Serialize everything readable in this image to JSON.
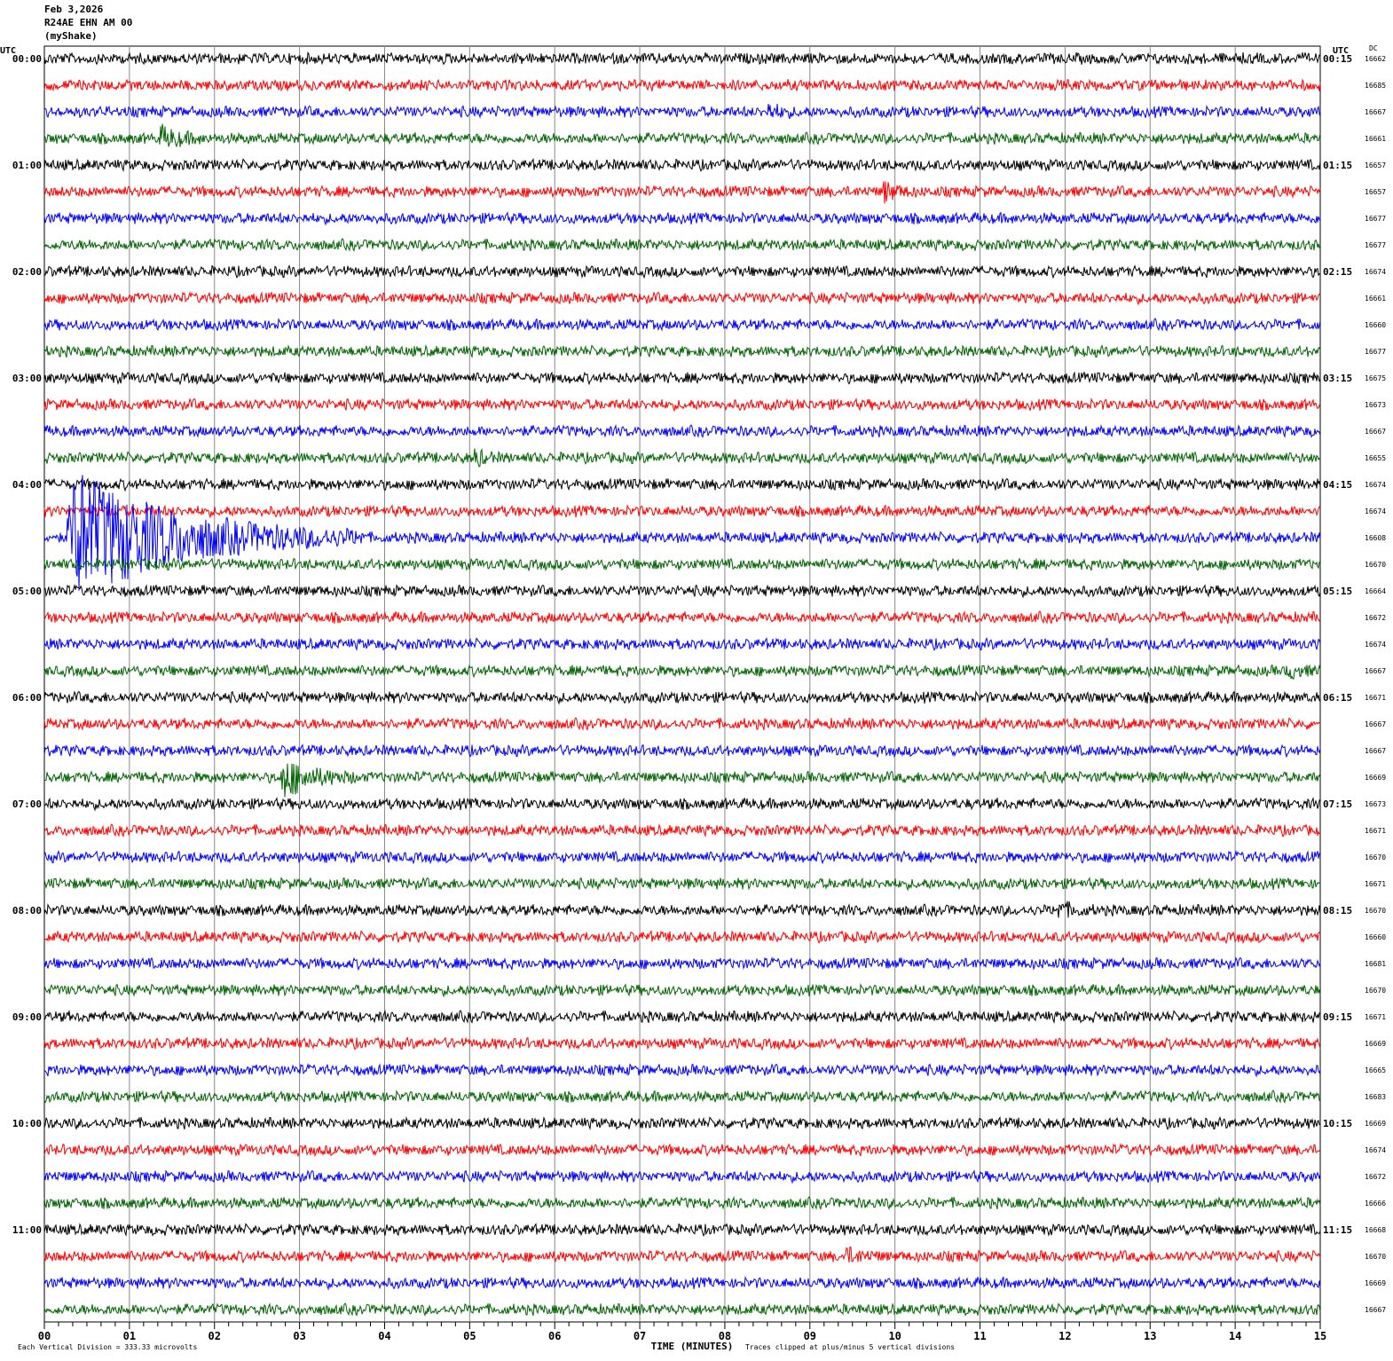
{
  "header": {
    "date": "Feb 3,2026",
    "station": "R24AE EHN AM 00",
    "network": "(myShake)"
  },
  "chart_data": {
    "type": "line",
    "title": "",
    "left_axis_label": "UTC",
    "right_axis_label": "UTC",
    "dc_label": "DC",
    "xlabel": "TIME (MINUTES)",
    "xlim": [
      0,
      15
    ],
    "x_ticks": [
      "00",
      "01",
      "02",
      "03",
      "04",
      "05",
      "06",
      "07",
      "08",
      "09",
      "10",
      "11",
      "12",
      "13",
      "14",
      "15"
    ],
    "left_time_labels": [
      "00:00",
      "01:00",
      "02:00",
      "03:00",
      "04:00",
      "05:00",
      "06:00",
      "07:00",
      "08:00",
      "09:00",
      "10:00",
      "11:00"
    ],
    "right_time_labels": [
      "00:15",
      "01:15",
      "02:15",
      "03:15",
      "04:15",
      "05:15",
      "06:15",
      "07:15",
      "08:15",
      "09:15",
      "10:15",
      "11:15"
    ],
    "trace_colors": [
      "#000000",
      "#ff0000",
      "#0000ff",
      "#006400"
    ],
    "minutes_per_line": 15,
    "dc_values": [
      16662,
      16685,
      16667,
      16661,
      16657,
      16657,
      16677,
      16677,
      16674,
      16661,
      16660,
      16677,
      16675,
      16673,
      16667,
      16655,
      16674,
      16674,
      16608,
      16670,
      16664,
      16672,
      16674,
      16667,
      16671,
      16667,
      16667,
      16669,
      16673,
      16671,
      16670,
      16671,
      16670,
      16660,
      16681,
      16670,
      16671,
      16669,
      16665,
      16683,
      16669,
      16674,
      16672,
      16666,
      16668,
      16670,
      16669,
      16667
    ],
    "events": [
      {
        "line": 3,
        "minute": 1.35,
        "amplitude": 3,
        "duration": 0.6
      },
      {
        "line": 2,
        "minute": 8.5,
        "amplitude": 2,
        "duration": 0.4
      },
      {
        "line": 5,
        "minute": 9.85,
        "amplitude": 3,
        "duration": 0.4
      },
      {
        "line": 15,
        "minute": 5.05,
        "amplitude": 2.5,
        "duration": 0.3
      },
      {
        "line": 18,
        "minute": 0.25,
        "amplitude": 20,
        "duration": 3.5
      },
      {
        "line": 23,
        "minute": 14.6,
        "amplitude": 2,
        "duration": 0.4
      },
      {
        "line": 27,
        "minute": 2.78,
        "amplitude": 6,
        "duration": 0.9
      },
      {
        "line": 32,
        "minute": 11.9,
        "amplitude": 2,
        "duration": 0.5
      },
      {
        "line": 45,
        "minute": 9.4,
        "amplitude": 2,
        "duration": 0.5
      }
    ],
    "footer_left": "Each Vertical Division =  333.33 microvolts",
    "footer_right": "Traces clipped at plus/minus 5 vertical divisions",
    "grid": true
  }
}
